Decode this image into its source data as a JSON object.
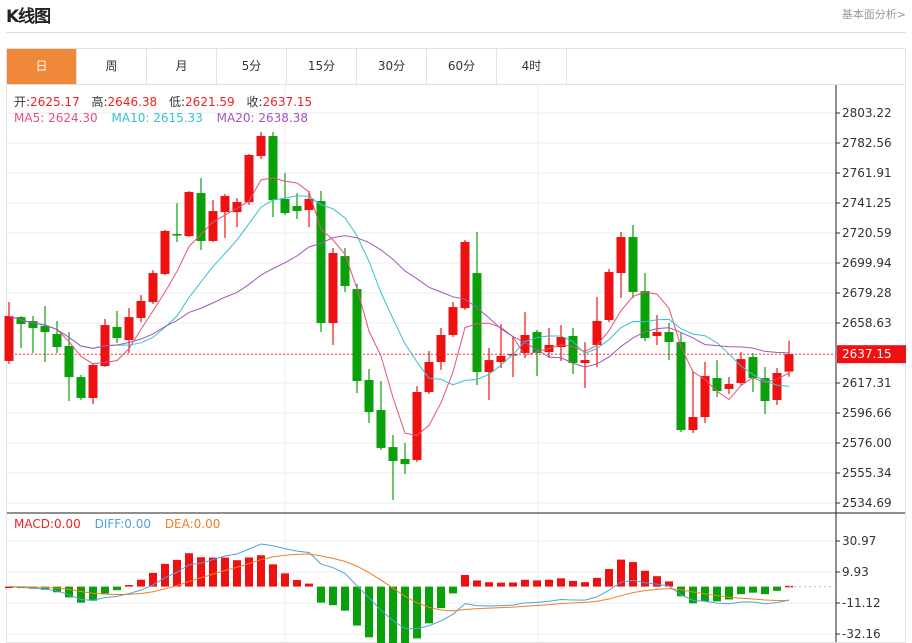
{
  "header": {
    "title": "K线图",
    "link": "基本面分析>"
  },
  "tabs": [
    {
      "label": "日",
      "active": true
    },
    {
      "label": "周"
    },
    {
      "label": "月"
    },
    {
      "label": "5分"
    },
    {
      "label": "15分"
    },
    {
      "label": "30分"
    },
    {
      "label": "60分"
    },
    {
      "label": "4时"
    }
  ],
  "ohlc_info": {
    "open_label": "开:",
    "open": "2625.17",
    "high_label": "高:",
    "high": "2646.38",
    "low_label": "低:",
    "low": "2621.59",
    "close_label": "收:",
    "close": "2637.15"
  },
  "ma_info": {
    "ma5": "MA5: 2624.30",
    "ma10": "MA10: 2615.33",
    "ma20": "MA20: 2638.38"
  },
  "macd_info": {
    "macd": "MACD:0.00",
    "diff": "DIFF:0.00",
    "dea": "DEA:0.00"
  },
  "colors": {
    "up": "#ee1111",
    "down": "#0aa00a",
    "ma5": "#e8507a",
    "ma10": "#35c2d0",
    "ma20": "#a356bb",
    "diff": "#4da3e0",
    "dea": "#ef7f2a",
    "accent": "#f0883a"
  },
  "chart_data": {
    "type": "candlestick",
    "price_axis": {
      "ticks": [
        "2803.22",
        "2782.56",
        "2761.91",
        "2741.25",
        "2720.59",
        "2699.94",
        "2679.28",
        "2658.63",
        "2617.31",
        "2596.66",
        "2576.00",
        "2555.34",
        "2534.69"
      ],
      "range": [
        2534.69,
        2803.22
      ]
    },
    "current_price": "2637.15",
    "macd_axis": {
      "ticks": [
        "30.97",
        "9.93",
        "-11.12",
        "-32.16"
      ]
    },
    "candles": [
      [
        2632.5,
        2673.1,
        2630.4,
        2663.4
      ],
      [
        2662.7,
        2663.4,
        2641.4,
        2657.9
      ],
      [
        2660.0,
        2663.4,
        2638.0,
        2655.2
      ],
      [
        2656.6,
        2670.3,
        2631.8,
        2652.4
      ],
      [
        2651.0,
        2660.0,
        2638.0,
        2642.1
      ],
      [
        2642.8,
        2652.4,
        2604.9,
        2621.4
      ],
      [
        2621.4,
        2622.8,
        2605.6,
        2607.0
      ],
      [
        2607.0,
        2631.1,
        2602.8,
        2629.7
      ],
      [
        2629.0,
        2661.4,
        2628.3,
        2657.2
      ],
      [
        2655.9,
        2666.9,
        2644.8,
        2648.3
      ],
      [
        2646.9,
        2668.9,
        2638.0,
        2662.7
      ],
      [
        2662.1,
        2677.9,
        2659.3,
        2673.8
      ],
      [
        2673.1,
        2695.1,
        2671.7,
        2693.0
      ],
      [
        2692.4,
        2722.7,
        2691.7,
        2722.0
      ],
      [
        2719.9,
        2741.2,
        2714.4,
        2719.2
      ],
      [
        2718.5,
        2749.5,
        2717.8,
        2748.8
      ],
      [
        2748.1,
        2758.4,
        2708.9,
        2715.1
      ],
      [
        2715.1,
        2743.3,
        2714.4,
        2735.7
      ],
      [
        2735.0,
        2747.5,
        2717.1,
        2746.1
      ],
      [
        2735.0,
        2744.7,
        2724.7,
        2741.9
      ],
      [
        2741.9,
        2775.0,
        2739.9,
        2774.3
      ],
      [
        2773.6,
        2790.1,
        2771.5,
        2787.4
      ],
      [
        2787.4,
        2790.1,
        2731.6,
        2743.3
      ],
      [
        2744.0,
        2761.9,
        2732.9,
        2734.3
      ],
      [
        2739.2,
        2748.1,
        2730.2,
        2735.7
      ],
      [
        2736.4,
        2749.5,
        2724.7,
        2744.0
      ],
      [
        2742.6,
        2749.5,
        2652.4,
        2658.6
      ],
      [
        2658.6,
        2710.3,
        2643.5,
        2706.8
      ],
      [
        2704.7,
        2710.3,
        2680.0,
        2684.1
      ],
      [
        2682.0,
        2685.5,
        2610.4,
        2618.7
      ],
      [
        2619.4,
        2626.9,
        2589.8,
        2597.3
      ],
      [
        2598.7,
        2618.7,
        2571.2,
        2572.6
      ],
      [
        2573.2,
        2581.5,
        2536.8,
        2563.6
      ],
      [
        2565.0,
        2576.0,
        2554.7,
        2561.5
      ],
      [
        2564.3,
        2615.2,
        2562.9,
        2611.1
      ],
      [
        2611.1,
        2639.3,
        2609.7,
        2631.8
      ],
      [
        2631.8,
        2655.2,
        2626.3,
        2650.4
      ],
      [
        2650.4,
        2673.1,
        2649.0,
        2669.6
      ],
      [
        2668.9,
        2715.8,
        2667.6,
        2714.4
      ],
      [
        2693.0,
        2721.3,
        2615.9,
        2624.9
      ],
      [
        2624.9,
        2641.4,
        2605.6,
        2633.1
      ],
      [
        2631.8,
        2657.9,
        2627.6,
        2635.9
      ],
      [
        2636.6,
        2649.0,
        2621.4,
        2637.3
      ],
      [
        2638.0,
        2666.2,
        2634.5,
        2650.4
      ],
      [
        2652.4,
        2653.8,
        2622.1,
        2638.0
      ],
      [
        2638.6,
        2655.2,
        2634.5,
        2643.5
      ],
      [
        2642.1,
        2657.2,
        2632.5,
        2649.0
      ],
      [
        2649.7,
        2655.2,
        2623.5,
        2631.1
      ],
      [
        2631.1,
        2645.5,
        2613.9,
        2633.1
      ],
      [
        2643.5,
        2676.5,
        2628.3,
        2660.0
      ],
      [
        2660.7,
        2695.8,
        2659.3,
        2693.7
      ],
      [
        2693.0,
        2721.3,
        2675.8,
        2717.8
      ],
      [
        2717.8,
        2726.1,
        2675.8,
        2680.0
      ],
      [
        2680.6,
        2693.0,
        2646.2,
        2648.3
      ],
      [
        2649.7,
        2664.1,
        2643.5,
        2652.4
      ],
      [
        2652.4,
        2658.6,
        2633.1,
        2645.5
      ],
      [
        2645.5,
        2651.7,
        2583.6,
        2584.9
      ],
      [
        2584.9,
        2625.6,
        2582.9,
        2593.9
      ],
      [
        2593.9,
        2631.8,
        2589.8,
        2622.1
      ],
      [
        2620.7,
        2633.1,
        2607.7,
        2611.8
      ],
      [
        2613.2,
        2621.4,
        2609.7,
        2616.6
      ],
      [
        2617.3,
        2638.6,
        2615.2,
        2633.8
      ],
      [
        2635.2,
        2638.0,
        2611.1,
        2620.7
      ],
      [
        2620.7,
        2628.3,
        2596.0,
        2604.9
      ],
      [
        2605.6,
        2627.6,
        2602.2,
        2624.2
      ],
      [
        2625.17,
        2646.38,
        2621.59,
        2637.15
      ]
    ],
    "candle_format": [
      "open",
      "high",
      "low",
      "close"
    ],
    "indicators": [
      "MA5",
      "MA10",
      "MA20",
      "MACD(12,26,9)"
    ]
  }
}
